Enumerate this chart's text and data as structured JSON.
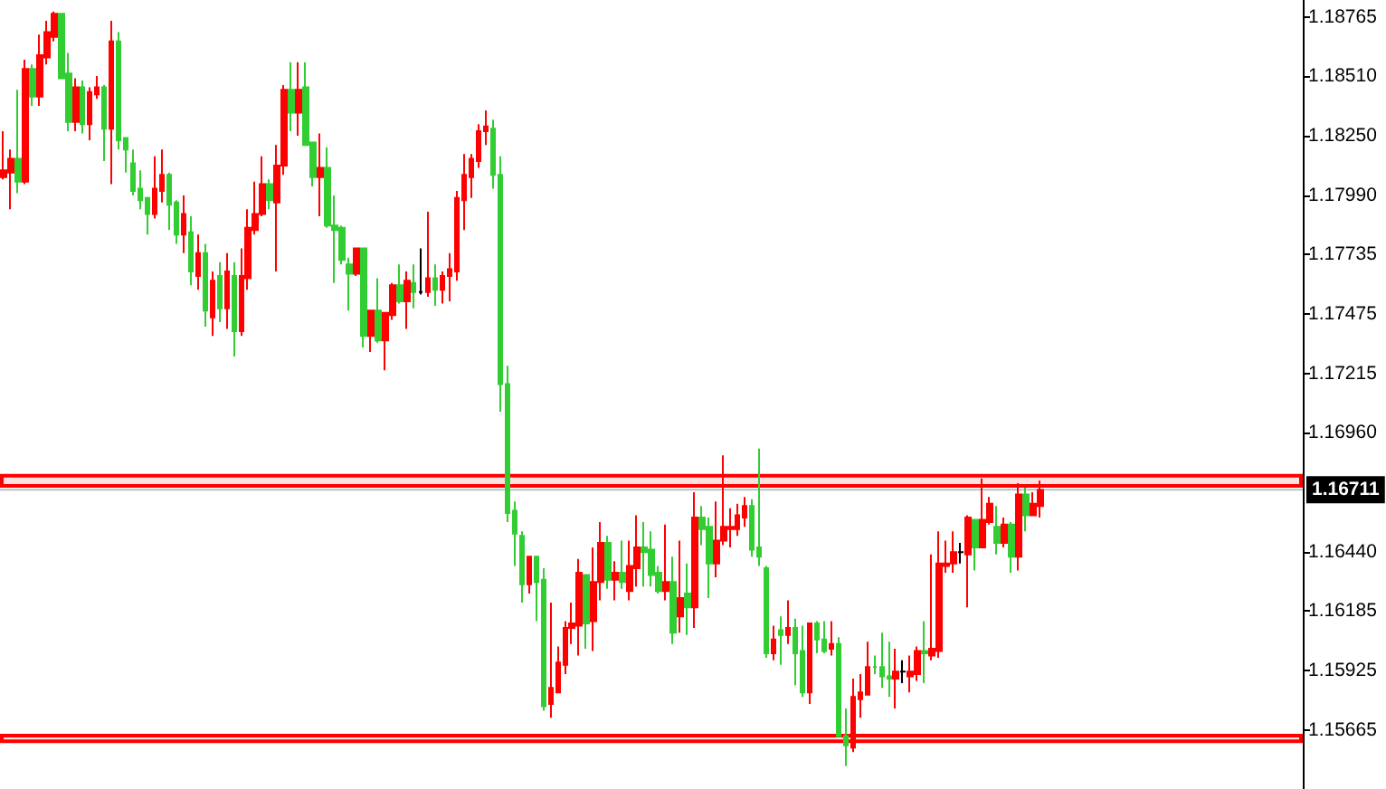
{
  "chart_data": {
    "type": "candlestick",
    "tick_labels": "y",
    "categories": [
      null,
      null,
      null,
      null,
      null,
      null,
      null,
      null,
      null,
      null,
      null,
      null,
      null,
      null,
      null,
      null,
      null,
      null,
      null,
      null,
      null,
      null,
      null,
      null,
      null,
      null,
      null,
      null,
      null,
      null,
      null,
      null,
      null,
      null,
      null,
      null,
      null,
      null,
      null,
      null,
      null,
      null,
      null,
      null,
      null,
      null,
      null,
      null,
      null,
      null,
      null,
      null,
      null,
      null,
      null,
      null,
      null,
      null,
      null,
      null,
      null,
      null,
      null,
      null,
      null,
      null,
      null,
      null,
      null,
      null,
      null,
      null,
      null,
      null,
      null,
      null,
      null,
      null,
      null,
      null,
      null,
      null,
      null,
      null,
      null,
      null,
      null,
      null,
      null,
      null,
      null,
      null,
      null,
      null,
      null,
      null,
      null,
      null,
      null,
      null,
      null,
      null,
      null,
      null,
      null,
      null,
      null,
      null,
      null,
      null,
      null,
      null,
      null,
      null,
      null,
      null,
      null,
      null,
      null,
      null,
      null,
      null,
      null,
      null,
      null,
      null,
      null,
      null,
      null,
      null,
      null,
      null,
      null,
      null,
      null,
      null,
      null,
      null,
      null,
      null,
      null,
      null,
      null,
      null,
      null,
      null,
      null,
      null,
      null,
      null,
      null,
      null,
      null,
      null,
      null,
      null,
      null,
      null,
      null,
      null,
      null,
      null,
      null,
      null,
      null,
      null,
      null,
      null,
      null,
      null,
      null,
      null,
      null,
      null,
      null,
      null,
      null,
      null,
      null,
      null,
      null
    ],
    "ohlc": [
      [
        1.1807,
        1.1827,
        1.1806,
        1.181
      ],
      [
        1.1809,
        1.1819,
        1.1793,
        1.1815
      ],
      [
        1.1815,
        1.1845,
        1.18,
        1.1805
      ],
      [
        1.1805,
        1.1858,
        1.1804,
        1.1854
      ],
      [
        1.1854,
        1.1856,
        1.1838,
        1.1842
      ],
      [
        1.1842,
        1.1869,
        1.1838,
        1.186
      ],
      [
        1.1859,
        1.1875,
        1.1856,
        1.187
      ],
      [
        1.1868,
        1.1879,
        1.1866,
        1.1878
      ],
      [
        1.1878,
        1.1878,
        1.185,
        1.185
      ],
      [
        1.1852,
        1.1861,
        1.1827,
        1.1831
      ],
      [
        1.1831,
        1.185,
        1.1827,
        1.1846
      ],
      [
        1.1846,
        1.1849,
        1.1826,
        1.183
      ],
      [
        1.183,
        1.1846,
        1.1823,
        1.1844
      ],
      [
        1.1843,
        1.1851,
        1.1841,
        1.1846
      ],
      [
        1.1846,
        1.1847,
        1.1814,
        1.1828
      ],
      [
        1.1828,
        1.1875,
        1.1804,
        1.1866
      ],
      [
        1.1866,
        1.187,
        1.1819,
        1.1823
      ],
      [
        1.1824,
        1.1824,
        1.1809,
        1.1819
      ],
      [
        1.1813,
        1.1819,
        1.1799,
        1.1801
      ],
      [
        1.1802,
        1.181,
        1.1793,
        1.1797
      ],
      [
        1.1798,
        1.1798,
        1.1782,
        1.1791
      ],
      [
        1.1791,
        1.1816,
        1.1789,
        1.1802
      ],
      [
        1.1801,
        1.1819,
        1.1796,
        1.1808
      ],
      [
        1.1808,
        1.1809,
        1.1784,
        1.1795
      ],
      [
        1.1796,
        1.1797,
        1.1778,
        1.1782
      ],
      [
        1.1782,
        1.1799,
        1.1774,
        1.1791
      ],
      [
        1.1783,
        1.179,
        1.176,
        1.1766
      ],
      [
        1.1764,
        1.1782,
        1.1758,
        1.1774
      ],
      [
        1.1774,
        1.1778,
        1.1742,
        1.1749
      ],
      [
        1.1746,
        1.1766,
        1.1738,
        1.1762
      ],
      [
        1.1764,
        1.177,
        1.1744,
        1.175
      ],
      [
        1.175,
        1.1774,
        1.1741,
        1.1766
      ],
      [
        1.1764,
        1.177,
        1.1729,
        1.174
      ],
      [
        1.174,
        1.1776,
        1.1738,
        1.1764
      ],
      [
        1.1763,
        1.1793,
        1.1758,
        1.1785
      ],
      [
        1.1784,
        1.1805,
        1.1782,
        1.1791
      ],
      [
        1.1791,
        1.1816,
        1.179,
        1.1804
      ],
      [
        1.1804,
        1.1806,
        1.1793,
        1.1797
      ],
      [
        1.1796,
        1.1821,
        1.1766,
        1.1812
      ],
      [
        1.1812,
        1.1847,
        1.1808,
        1.1845
      ],
      [
        1.1845,
        1.1857,
        1.1827,
        1.1835
      ],
      [
        1.1835,
        1.1857,
        1.1825,
        1.1845
      ],
      [
        1.1846,
        1.1857,
        1.1821,
        1.1821
      ],
      [
        1.1822,
        1.1822,
        1.1803,
        1.1807
      ],
      [
        1.1807,
        1.1826,
        1.179,
        1.1811
      ],
      [
        1.1811,
        1.182,
        1.1785,
        1.1786
      ],
      [
        1.1786,
        1.1799,
        1.1761,
        1.1784
      ],
      [
        1.1785,
        1.1786,
        1.1769,
        1.1771
      ],
      [
        1.1769,
        1.1772,
        1.1749,
        1.1765
      ],
      [
        1.1765,
        1.1776,
        1.1764,
        1.1776
      ],
      [
        1.1776,
        1.1776,
        1.1733,
        1.1738
      ],
      [
        1.1738,
        1.1749,
        1.1731,
        1.1749
      ],
      [
        1.1749,
        1.1763,
        1.1735,
        1.1736
      ],
      [
        1.1736,
        1.1748,
        1.1723,
        1.1748
      ],
      [
        1.1747,
        1.1761,
        1.1745,
        1.176
      ],
      [
        1.176,
        1.1769,
        1.1752,
        1.1753
      ],
      [
        1.1753,
        1.1766,
        1.1741,
        1.1762
      ],
      [
        1.1761,
        1.1769,
        1.175,
        1.1757
      ],
      [
        1.1757,
        1.1776,
        1.1756,
        1.1757
      ],
      [
        1.1757,
        1.1792,
        1.1755,
        1.1763
      ],
      [
        1.1763,
        1.1769,
        1.1751,
        1.1758
      ],
      [
        1.1758,
        1.1766,
        1.1752,
        1.1764
      ],
      [
        1.1764,
        1.1774,
        1.1753,
        1.1767
      ],
      [
        1.1766,
        1.1801,
        1.1762,
        1.1798
      ],
      [
        1.1797,
        1.1817,
        1.1784,
        1.1808
      ],
      [
        1.1807,
        1.1817,
        1.1798,
        1.1815
      ],
      [
        1.1814,
        1.183,
        1.1811,
        1.1827
      ],
      [
        1.1827,
        1.1836,
        1.1821,
        1.1829
      ],
      [
        1.1828,
        1.1832,
        1.1802,
        1.1808
      ],
      [
        1.1808,
        1.1816,
        1.1705,
        1.1717
      ],
      [
        1.1717,
        1.1725,
        1.1657,
        1.1661
      ],
      [
        1.1662,
        1.1666,
        1.1638,
        1.1652
      ],
      [
        1.1651,
        1.1653,
        1.1622,
        1.163
      ],
      [
        1.163,
        1.1642,
        1.1626,
        1.1642
      ],
      [
        1.1642,
        1.1642,
        1.1614,
        1.1631
      ],
      [
        1.1632,
        1.1637,
        1.1575,
        1.1577
      ],
      [
        1.1578,
        1.1622,
        1.1572,
        1.1585
      ],
      [
        1.1583,
        1.1603,
        1.1583,
        1.1596
      ],
      [
        1.1595,
        1.1614,
        1.1591,
        1.1611
      ],
      [
        1.1611,
        1.1622,
        1.1604,
        1.1613
      ],
      [
        1.1612,
        1.1641,
        1.1599,
        1.1635
      ],
      [
        1.1634,
        1.1634,
        1.1602,
        1.1613
      ],
      [
        1.1614,
        1.1646,
        1.1601,
        1.1631
      ],
      [
        1.1631,
        1.1657,
        1.1623,
        1.1648
      ],
      [
        1.1648,
        1.1651,
        1.1628,
        1.1632
      ],
      [
        1.1632,
        1.164,
        1.1623,
        1.1635
      ],
      [
        1.1635,
        1.1649,
        1.1628,
        1.1631
      ],
      [
        1.1627,
        1.1649,
        1.1623,
        1.1638
      ],
      [
        1.1637,
        1.166,
        1.1629,
        1.1646
      ],
      [
        1.1646,
        1.1657,
        1.1629,
        1.1644
      ],
      [
        1.1645,
        1.1653,
        1.1629,
        1.1634
      ],
      [
        1.1635,
        1.1638,
        1.1626,
        1.1627
      ],
      [
        1.1627,
        1.1656,
        1.1623,
        1.1631
      ],
      [
        1.1631,
        1.1642,
        1.1604,
        1.1609
      ],
      [
        1.1616,
        1.1649,
        1.1609,
        1.1624
      ],
      [
        1.1626,
        1.1639,
        1.1608,
        1.162
      ],
      [
        1.162,
        1.167,
        1.1611,
        1.1659
      ],
      [
        1.1659,
        1.1664,
        1.1647,
        1.1654
      ],
      [
        1.1655,
        1.1659,
        1.1624,
        1.1639
      ],
      [
        1.1639,
        1.1666,
        1.1633,
        1.1649
      ],
      [
        1.1649,
        1.1686,
        1.1647,
        1.1655
      ],
      [
        1.1654,
        1.1663,
        1.1646,
        1.1655
      ],
      [
        1.1654,
        1.1665,
        1.1651,
        1.166
      ],
      [
        1.1659,
        1.1668,
        1.1655,
        1.1664
      ],
      [
        1.1664,
        1.1667,
        1.1642,
        1.1645
      ],
      [
        1.1646,
        1.1689,
        1.1638,
        1.1642
      ],
      [
        1.1637,
        1.1638,
        1.1598,
        1.16
      ],
      [
        1.16,
        1.1612,
        1.1597,
        1.1606
      ],
      [
        1.161,
        1.1616,
        1.1595,
        1.1608
      ],
      [
        1.1608,
        1.1623,
        1.1604,
        1.1611
      ],
      [
        1.1611,
        1.1615,
        1.1586,
        1.16
      ],
      [
        1.1601,
        1.1612,
        1.1581,
        1.1583
      ],
      [
        1.1583,
        1.1613,
        1.1578,
        1.1613
      ],
      [
        1.1613,
        1.1614,
        1.16,
        1.1606
      ],
      [
        1.1606,
        1.1614,
        1.16,
        1.1601
      ],
      [
        1.1602,
        1.1614,
        1.1599,
        1.1604
      ],
      [
        1.1604,
        1.1607,
        1.1564,
        1.1564
      ],
      [
        1.1564,
        1.1576,
        1.1551,
        1.156
      ],
      [
        1.1559,
        1.1589,
        1.1557,
        1.1581
      ],
      [
        1.158,
        1.1591,
        1.1572,
        1.1583
      ],
      [
        1.1582,
        1.1605,
        1.1582,
        1.1594
      ],
      [
        1.1594,
        1.1599,
        1.1591,
        1.1594
      ],
      [
        1.1594,
        1.1609,
        1.1585,
        1.159
      ],
      [
        1.159,
        1.1605,
        1.1581,
        1.1589
      ],
      [
        1.1589,
        1.1602,
        1.1576,
        1.1592
      ],
      [
        1.1592,
        1.1597,
        1.1587,
        1.1592
      ],
      [
        1.159,
        1.1599,
        1.1583,
        1.1592
      ],
      [
        1.1591,
        1.1603,
        1.1588,
        1.1601
      ],
      [
        1.1601,
        1.1614,
        1.1587,
        1.16
      ],
      [
        1.1599,
        1.1643,
        1.1597,
        1.1602
      ],
      [
        1.1601,
        1.1653,
        1.1598,
        1.1639
      ],
      [
        1.1638,
        1.1649,
        1.1635,
        1.1639
      ],
      [
        1.1639,
        1.1653,
        1.1635,
        1.1644
      ],
      [
        1.1644,
        1.1648,
        1.1639,
        1.1644
      ],
      [
        1.1643,
        1.166,
        1.162,
        1.1659
      ],
      [
        1.1658,
        1.1658,
        1.1636,
        1.1646
      ],
      [
        1.1646,
        1.1676,
        1.1646,
        1.1658
      ],
      [
        1.1657,
        1.1668,
        1.1656,
        1.1665
      ],
      [
        1.1655,
        1.1664,
        1.1643,
        1.1648
      ],
      [
        1.1648,
        1.1659,
        1.1646,
        1.1656
      ],
      [
        1.1656,
        1.1657,
        1.1635,
        1.1642
      ],
      [
        1.1642,
        1.1674,
        1.1636,
        1.1669
      ],
      [
        1.1669,
        1.1672,
        1.1653,
        1.166
      ],
      [
        1.166,
        1.167,
        1.166,
        1.1665
      ],
      [
        1.1664,
        1.1675,
        1.1659,
        1.1671
      ],
      null,
      null,
      null,
      null,
      null,
      null,
      null,
      null,
      null,
      null,
      null,
      null,
      null,
      null,
      null,
      null,
      null,
      null,
      null,
      null,
      null,
      null,
      null,
      null,
      null,
      null,
      null,
      null,
      null,
      null,
      null,
      null,
      null,
      null,
      null,
      null
    ],
    "colors": [
      "#ff0000",
      "#ff0000",
      "#32cd32",
      "#ff0000",
      "#32cd32",
      "#ff0000",
      "#ff0000",
      "#ff0000",
      "#32cd32",
      "#32cd32",
      "#ff0000",
      "#32cd32",
      "#ff0000",
      "#ff0000",
      "#32cd32",
      "#ff0000",
      "#32cd32",
      "#32cd32",
      "#32cd32",
      "#32cd32",
      "#32cd32",
      "#ff0000",
      "#ff0000",
      "#32cd32",
      "#32cd32",
      "#ff0000",
      "#32cd32",
      "#ff0000",
      "#32cd32",
      "#ff0000",
      "#32cd32",
      "#ff0000",
      "#32cd32",
      "#ff0000",
      "#ff0000",
      "#ff0000",
      "#ff0000",
      "#32cd32",
      "#ff0000",
      "#ff0000",
      "#32cd32",
      "#ff0000",
      "#32cd32",
      "#32cd32",
      "#ff0000",
      "#32cd32",
      "#32cd32",
      "#32cd32",
      "#32cd32",
      "#ff0000",
      "#32cd32",
      "#ff0000",
      "#32cd32",
      "#ff0000",
      "#ff0000",
      "#32cd32",
      "#ff0000",
      "#32cd32",
      "#000000",
      "#ff0000",
      "#32cd32",
      "#ff0000",
      "#ff0000",
      "#ff0000",
      "#ff0000",
      "#ff0000",
      "#ff0000",
      "#ff0000",
      "#32cd32",
      "#32cd32",
      "#32cd32",
      "#32cd32",
      "#32cd32",
      "#ff0000",
      "#32cd32",
      "#32cd32",
      "#ff0000",
      "#ff0000",
      "#ff0000",
      "#ff0000",
      "#ff0000",
      "#32cd32",
      "#ff0000",
      "#ff0000",
      "#32cd32",
      "#ff0000",
      "#32cd32",
      "#ff0000",
      "#ff0000",
      "#32cd32",
      "#32cd32",
      "#32cd32",
      "#ff0000",
      "#32cd32",
      "#ff0000",
      "#32cd32",
      "#ff0000",
      "#32cd32",
      "#32cd32",
      "#ff0000",
      "#ff0000",
      "#ff0000",
      "#ff0000",
      "#ff0000",
      "#32cd32",
      "#32cd32",
      "#32cd32",
      "#ff0000",
      "#32cd32",
      "#ff0000",
      "#32cd32",
      "#32cd32",
      "#ff0000",
      "#32cd32",
      "#32cd32",
      "#ff0000",
      "#32cd32",
      "#32cd32",
      "#ff0000",
      "#ff0000",
      "#ff0000",
      "#32cd32",
      "#32cd32",
      "#32cd32",
      "#ff0000",
      "#000000",
      "#ff0000",
      "#ff0000",
      "#32cd32",
      "#ff0000",
      "#ff0000",
      "#ff0000",
      "#ff0000",
      "#000000",
      "#ff0000",
      "#32cd32",
      "#ff0000",
      "#ff0000",
      "#32cd32",
      "#ff0000",
      "#32cd32",
      "#ff0000",
      "#32cd32",
      "#ff0000",
      "#ff0000",
      null,
      null,
      null,
      null,
      null,
      null,
      null,
      null,
      null,
      null,
      null,
      null,
      null,
      null,
      null,
      null,
      null,
      null,
      null,
      null,
      null,
      null,
      null,
      null,
      null,
      null,
      null,
      null,
      null,
      null,
      null,
      null,
      null,
      null,
      null,
      null
    ],
    "ylim": [
      1.1541,
      1.1884
    ],
    "yticks": [
      1.18765,
      {
        "value": 1.1851,
        "label": "1.18510"
      },
      {
        "value": 1.1825,
        "label": "1.18250"
      },
      {
        "value": 1.1799,
        "label": "1.17990"
      },
      1.17735,
      1.17475,
      1.17215,
      {
        "value": 1.1696,
        "label": "1.16960"
      },
      {
        "value": 1.1644,
        "label": "1.16440"
      },
      1.16185,
      1.15925,
      1.15665
    ],
    "ref_lines": [
      {
        "axis": "y",
        "value": 1.16711,
        "label": "1.16711",
        "color": "#c0c0c0"
      }
    ],
    "bands": [
      {
        "axis": "y",
        "from": 1.1672,
        "to": 1.1678,
        "color": "#ff0000"
      },
      {
        "axis": "y",
        "from": 1.1561,
        "to": 1.1565,
        "color": "#ff0000"
      }
    ]
  }
}
